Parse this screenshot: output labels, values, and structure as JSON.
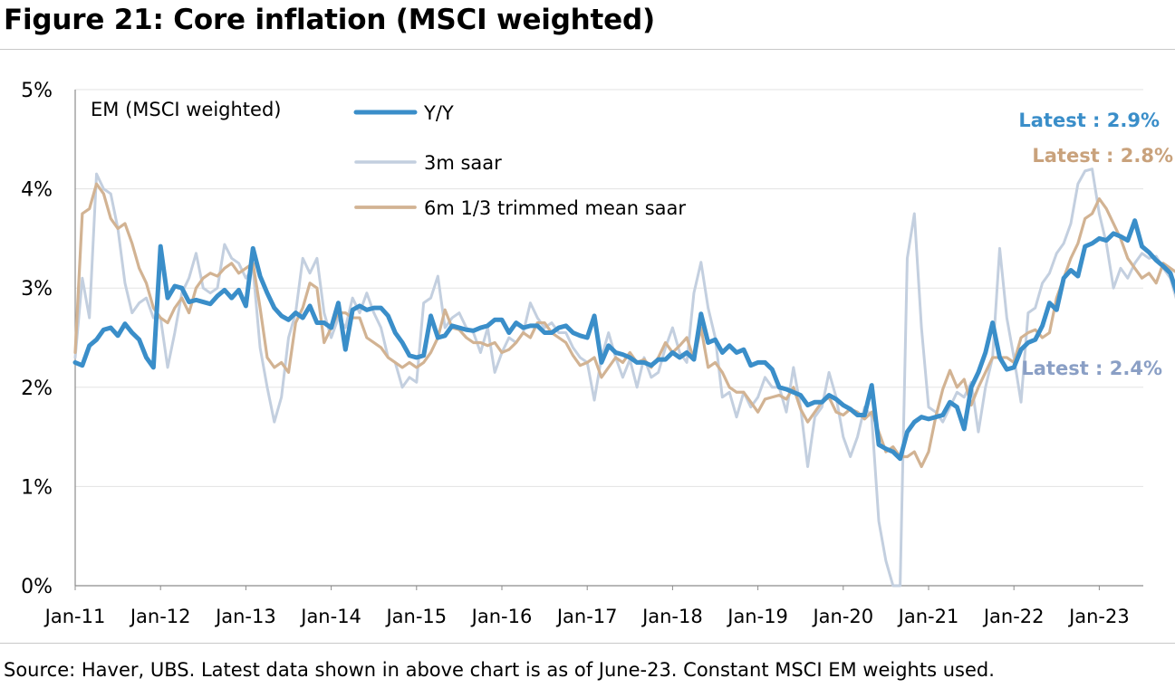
{
  "title": "Figure 21: Core inflation (MSCI weighted)",
  "source": "Source: Haver, UBS. Latest data shown in above chart is as of June-23. Constant MSCI EM weights used.",
  "chart_data": {
    "type": "line",
    "panel_label": "EM (MSCI weighted)",
    "x_start": "Jan-11",
    "x_frequency": "monthly",
    "x_ticks": [
      "Jan-11",
      "Jan-12",
      "Jan-13",
      "Jan-14",
      "Jan-15",
      "Jan-16",
      "Jan-17",
      "Jan-18",
      "Jan-19",
      "Jan-20",
      "Jan-21",
      "Jan-22",
      "Jan-23"
    ],
    "y_ticks": [
      "0%",
      "1%",
      "2%",
      "3%",
      "4%",
      "5%"
    ],
    "ylim": [
      0,
      5
    ],
    "grid": "horizontal",
    "legend_position": "top-left",
    "series": [
      {
        "name": "Y/Y",
        "color": "#3a8ec9",
        "values": [
          2.25,
          2.22,
          2.42,
          2.48,
          2.58,
          2.6,
          2.52,
          2.64,
          2.55,
          2.48,
          2.3,
          2.2,
          3.42,
          2.9,
          3.02,
          3.0,
          2.86,
          2.88,
          2.86,
          2.84,
          2.92,
          2.98,
          2.9,
          2.98,
          2.82,
          3.4,
          3.12,
          2.95,
          2.8,
          2.72,
          2.68,
          2.75,
          2.7,
          2.82,
          2.65,
          2.65,
          2.6,
          2.85,
          2.38,
          2.78,
          2.82,
          2.78,
          2.8,
          2.8,
          2.72,
          2.55,
          2.45,
          2.32,
          2.3,
          2.32,
          2.72,
          2.5,
          2.52,
          2.62,
          2.6,
          2.58,
          2.57,
          2.6,
          2.62,
          2.68,
          2.68,
          2.55,
          2.65,
          2.6,
          2.62,
          2.62,
          2.55,
          2.55,
          2.6,
          2.62,
          2.55,
          2.52,
          2.5,
          2.72,
          2.25,
          2.42,
          2.35,
          2.33,
          2.3,
          2.25,
          2.25,
          2.22,
          2.28,
          2.28,
          2.35,
          2.3,
          2.35,
          2.28,
          2.74,
          2.45,
          2.48,
          2.35,
          2.42,
          2.35,
          2.38,
          2.22,
          2.25,
          2.25,
          2.18,
          2.0,
          1.98,
          1.95,
          1.92,
          1.82,
          1.85,
          1.85,
          1.92,
          1.88,
          1.82,
          1.78,
          1.72,
          1.72,
          2.02,
          1.42,
          1.38,
          1.35,
          1.28,
          1.55,
          1.65,
          1.7,
          1.68,
          1.7,
          1.72,
          1.85,
          1.8,
          1.58,
          2.0,
          2.15,
          2.35,
          2.65,
          2.3,
          2.18,
          2.2,
          2.38,
          2.45,
          2.48,
          2.62,
          2.85,
          2.78,
          3.1,
          3.18,
          3.12,
          3.42,
          3.45,
          3.5,
          3.48,
          3.55,
          3.52,
          3.48,
          3.68,
          3.42,
          3.36,
          3.28,
          3.22,
          3.15,
          2.93
        ]
      },
      {
        "name": "3m saar",
        "color": "#c3cfdf",
        "values": [
          2.3,
          3.1,
          2.7,
          4.15,
          4.0,
          3.95,
          3.6,
          3.05,
          2.75,
          2.85,
          2.9,
          2.7,
          2.7,
          2.2,
          2.55,
          2.95,
          3.1,
          3.35,
          3.0,
          2.95,
          3.0,
          3.44,
          3.3,
          3.25,
          3.1,
          3.2,
          2.4,
          2.0,
          1.65,
          1.9,
          2.5,
          2.75,
          3.3,
          3.15,
          3.3,
          2.75,
          2.5,
          2.7,
          2.6,
          2.9,
          2.75,
          2.95,
          2.75,
          2.6,
          2.3,
          2.25,
          2.0,
          2.1,
          2.05,
          2.85,
          2.9,
          3.12,
          2.6,
          2.7,
          2.75,
          2.6,
          2.55,
          2.35,
          2.6,
          2.15,
          2.35,
          2.5,
          2.45,
          2.55,
          2.85,
          2.7,
          2.6,
          2.65,
          2.55,
          2.55,
          2.4,
          2.3,
          2.25,
          1.87,
          2.3,
          2.55,
          2.3,
          2.1,
          2.28,
          2.0,
          2.3,
          2.1,
          2.15,
          2.4,
          2.6,
          2.35,
          2.25,
          2.95,
          3.26,
          2.8,
          2.5,
          1.9,
          1.95,
          1.7,
          1.95,
          1.8,
          1.9,
          2.1,
          2.0,
          2.0,
          1.75,
          2.2,
          1.8,
          1.2,
          1.7,
          1.8,
          2.15,
          1.9,
          1.5,
          1.3,
          1.5,
          1.8,
          1.7,
          0.65,
          0.25,
          0.0,
          0.0,
          3.3,
          3.75,
          2.6,
          1.8,
          1.75,
          1.65,
          1.8,
          1.95,
          1.9,
          2.05,
          1.55,
          2.0,
          2.3,
          3.4,
          2.7,
          2.3,
          1.85,
          2.75,
          2.8,
          3.05,
          3.15,
          3.35,
          3.45,
          3.65,
          4.05,
          4.18,
          4.2,
          3.75,
          3.45,
          3.0,
          3.2,
          3.1,
          3.25,
          3.35,
          3.3,
          3.32,
          3.2,
          3.1,
          2.85,
          2.7,
          2.4
        ]
      },
      {
        "name": "6m 1/3 trimmed mean saar",
        "color": "#d2b393",
        "values": [
          2.35,
          3.75,
          3.8,
          4.05,
          3.95,
          3.7,
          3.6,
          3.65,
          3.45,
          3.2,
          3.05,
          2.8,
          2.7,
          2.65,
          2.8,
          2.9,
          2.75,
          3.0,
          3.1,
          3.15,
          3.12,
          3.2,
          3.25,
          3.15,
          3.2,
          3.25,
          2.8,
          2.3,
          2.2,
          2.25,
          2.15,
          2.65,
          2.8,
          3.05,
          3.0,
          2.45,
          2.6,
          2.75,
          2.75,
          2.7,
          2.7,
          2.5,
          2.45,
          2.4,
          2.3,
          2.25,
          2.2,
          2.25,
          2.2,
          2.25,
          2.35,
          2.5,
          2.78,
          2.6,
          2.58,
          2.5,
          2.45,
          2.45,
          2.42,
          2.45,
          2.35,
          2.38,
          2.45,
          2.55,
          2.5,
          2.65,
          2.65,
          2.55,
          2.5,
          2.45,
          2.32,
          2.22,
          2.25,
          2.3,
          2.1,
          2.2,
          2.3,
          2.25,
          2.35,
          2.25,
          2.28,
          2.2,
          2.3,
          2.45,
          2.35,
          2.42,
          2.5,
          2.28,
          2.6,
          2.2,
          2.25,
          2.15,
          2.0,
          1.95,
          1.95,
          1.85,
          1.75,
          1.88,
          1.9,
          1.92,
          1.88,
          2.0,
          1.78,
          1.65,
          1.75,
          1.85,
          1.9,
          1.75,
          1.72,
          1.78,
          1.75,
          1.68,
          1.75,
          1.55,
          1.35,
          1.4,
          1.3,
          1.3,
          1.35,
          1.2,
          1.35,
          1.7,
          1.98,
          2.17,
          2.0,
          2.08,
          1.82,
          2.0,
          2.15,
          2.3,
          2.3,
          2.3,
          2.25,
          2.5,
          2.55,
          2.58,
          2.5,
          2.55,
          2.9,
          3.1,
          3.3,
          3.45,
          3.7,
          3.75,
          3.9,
          3.8,
          3.65,
          3.5,
          3.3,
          3.2,
          3.1,
          3.15,
          3.05,
          3.25,
          3.2,
          3.15,
          3.12,
          3.05,
          3.0,
          2.85
        ]
      }
    ],
    "annotations": [
      {
        "text": "Latest : 2.9%",
        "series": "Y/Y",
        "color": "#3a8ec9"
      },
      {
        "text": "Latest : 2.8%",
        "series": "6m 1/3 trimmed mean saar",
        "color": "#c9a27c"
      },
      {
        "text": "Latest : 2.4%",
        "series": "3m saar",
        "color": "#8a9fc5"
      }
    ]
  }
}
